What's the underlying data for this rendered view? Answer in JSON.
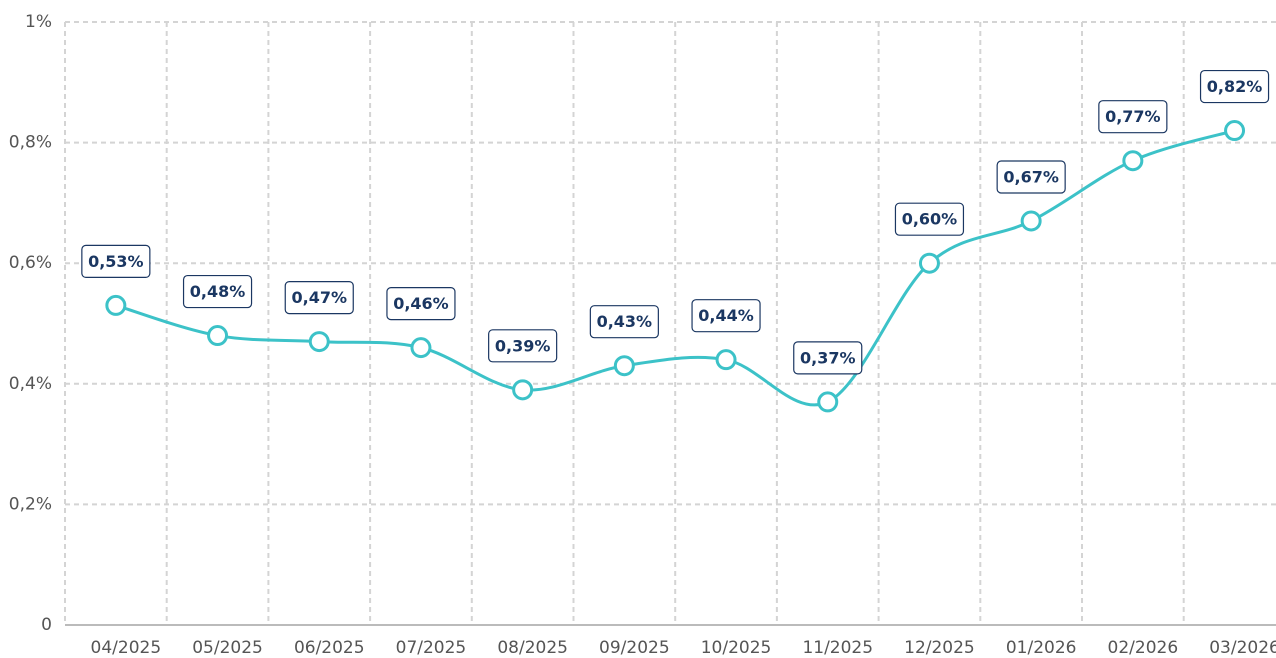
{
  "chart_data": {
    "type": "line",
    "categories": [
      "04/2025",
      "05/2025",
      "06/2025",
      "07/2025",
      "08/2025",
      "09/2025",
      "10/2025",
      "11/2025",
      "12/2025",
      "01/2026",
      "02/2026",
      "03/2026"
    ],
    "series": [
      {
        "color": "#3cc2c8",
        "values": [
          0.53,
          0.48,
          0.47,
          0.46,
          0.39,
          0.43,
          0.44,
          0.37,
          0.6,
          0.67,
          0.77,
          0.82
        ],
        "value_labels": [
          "0,53%",
          "0,48%",
          "0,47%",
          "0,46%",
          "0,39%",
          "0,43%",
          "0,44%",
          "0,37%",
          "0,60%",
          "0,67%",
          "0,77%",
          "0,82%"
        ]
      }
    ],
    "ylim": [
      0,
      1
    ],
    "yticks": [
      0,
      {
        "value": 0.2,
        "label": "0,2%"
      },
      {
        "value": 0.4,
        "label": "0,4%"
      },
      {
        "value": 0.6,
        "label": "0,6%"
      },
      {
        "value": 0.8,
        "label": "0,8%"
      },
      {
        "value": 1,
        "label": "1%"
      }
    ],
    "grid": true
  }
}
